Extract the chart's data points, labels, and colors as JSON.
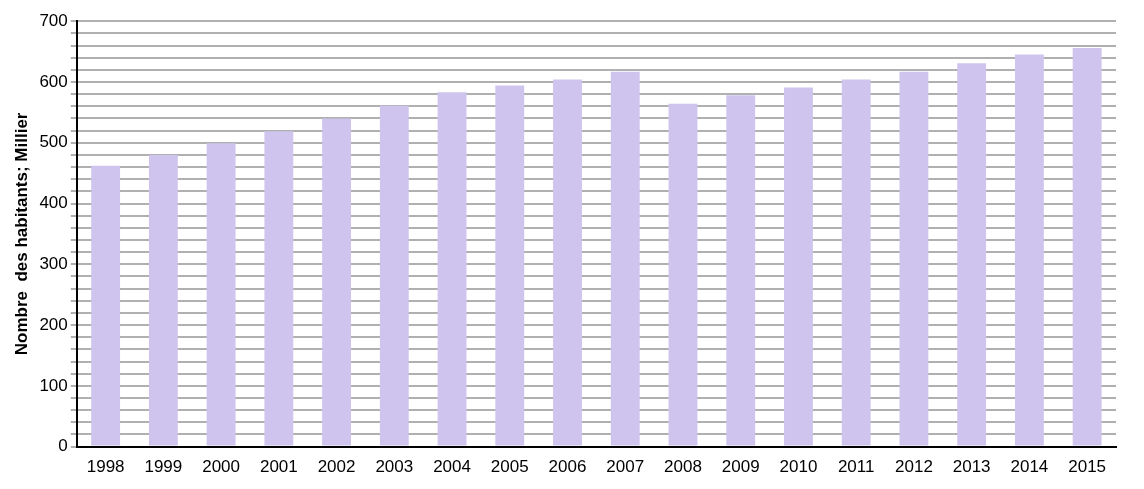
{
  "chart_data": {
    "type": "bar",
    "ylabel": "Nombre  des habitants; Millier",
    "categories": [
      "1998",
      "1999",
      "2000",
      "2001",
      "2002",
      "2003",
      "2004",
      "2005",
      "2006",
      "2007",
      "2008",
      "2009",
      "2010",
      "2011",
      "2012",
      "2013",
      "2014",
      "2015"
    ],
    "values": [
      462,
      480,
      499,
      519,
      540,
      561,
      583,
      594,
      604,
      617,
      564,
      578,
      591,
      604,
      617,
      631,
      645,
      656
    ],
    "color": "#cfc4ee",
    "ylim": [
      0,
      700
    ],
    "yticks": [
      0,
      {
        "value": 20,
        "label": null
      },
      {
        "value": 40,
        "label": null
      },
      {
        "value": 60,
        "label": null
      },
      {
        "value": 80,
        "label": null
      },
      100,
      {
        "value": 120,
        "label": null
      },
      {
        "value": 140,
        "label": null
      },
      {
        "value": 160,
        "label": null
      },
      {
        "value": 180,
        "label": null
      },
      200,
      {
        "value": 220,
        "label": null
      },
      {
        "value": 240,
        "label": null
      },
      {
        "value": 260,
        "label": null
      },
      {
        "value": 280,
        "label": null
      },
      300,
      {
        "value": 320,
        "label": null
      },
      {
        "value": 340,
        "label": null
      },
      {
        "value": 360,
        "label": null
      },
      {
        "value": 380,
        "label": null
      },
      400,
      {
        "value": 420,
        "label": null
      },
      {
        "value": 440,
        "label": null
      },
      {
        "value": 460,
        "label": null
      },
      {
        "value": 480,
        "label": null
      },
      500,
      {
        "value": 520,
        "label": null
      },
      {
        "value": 540,
        "label": null
      },
      {
        "value": 560,
        "label": null
      },
      {
        "value": 580,
        "label": null
      },
      600,
      {
        "value": 620,
        "label": null
      },
      {
        "value": 640,
        "label": null
      },
      {
        "value": 660,
        "label": null
      },
      {
        "value": 680,
        "label": null
      },
      700
    ],
    "grid": "y"
  }
}
